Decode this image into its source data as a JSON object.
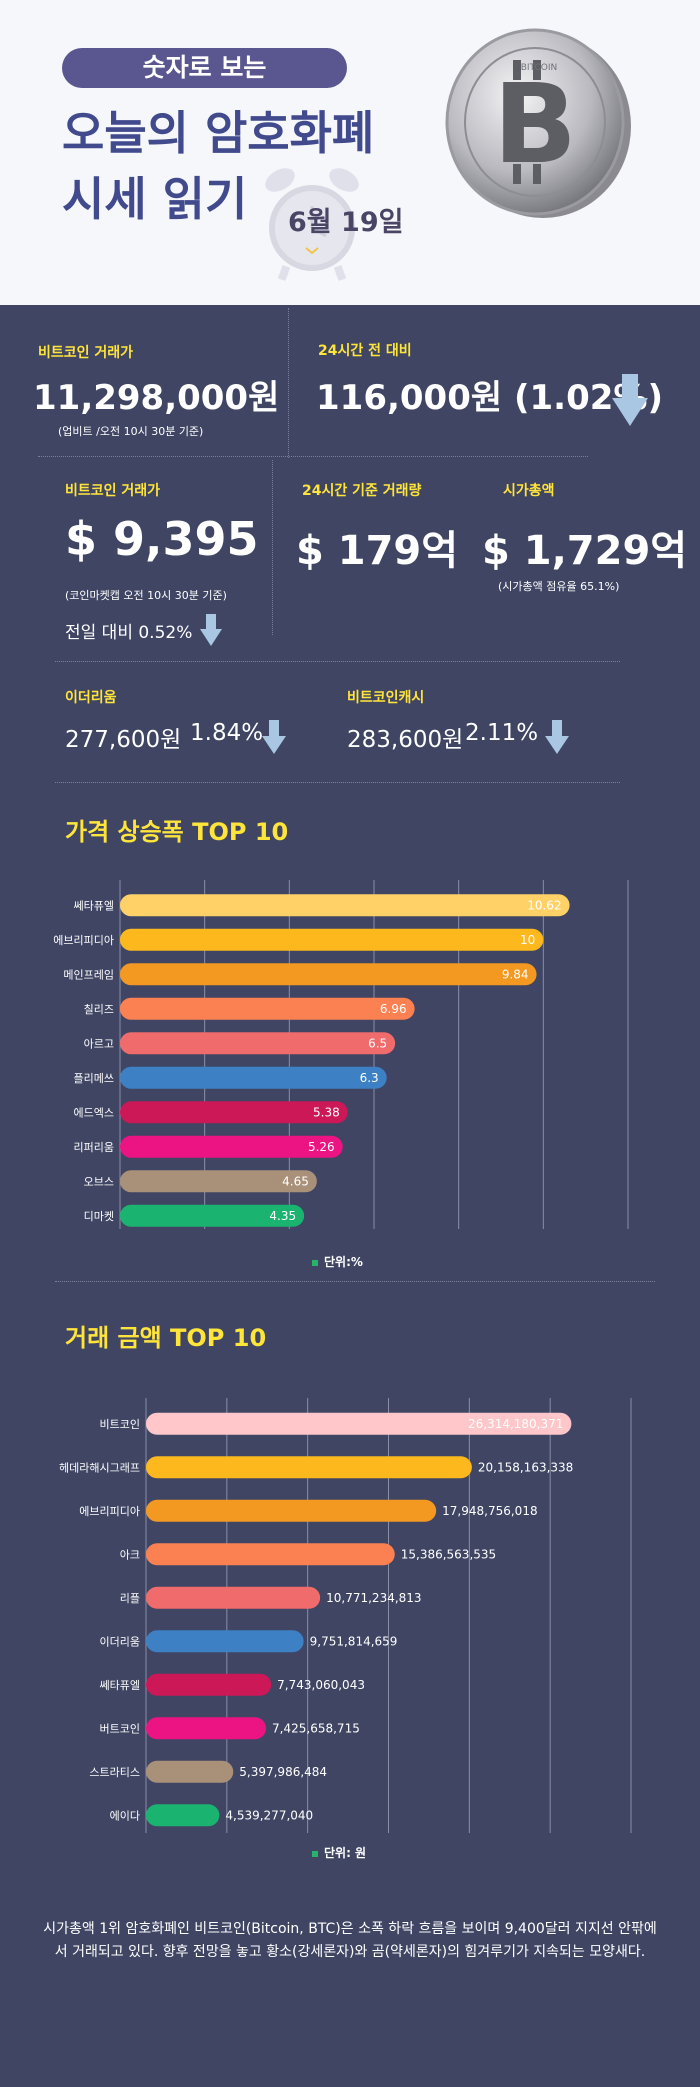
{
  "header": {
    "pill": "숫자로 보는",
    "title_line1": "오늘의 암호화폐",
    "title_line2": "시세 읽기",
    "date": "6월 19일",
    "coin_text": "BITCOIN"
  },
  "upbit": {
    "label": "비트코인 거래가",
    "price": "11,298,000원",
    "note": "(업비트 /오전 10시 30분 기준)"
  },
  "change24": {
    "label": "24시간 전 대비",
    "value": "116,000원 (1.02%)"
  },
  "coinmarketcap": {
    "label": "비트코인 거래가",
    "price": "$ 9,395",
    "note": "(코인마켓캡 오전 10시 30분 기준)",
    "prev": "전일 대비 0.52%"
  },
  "volume": {
    "label": "24시간 기준 거래량",
    "value": "$ 179억"
  },
  "marketcap": {
    "label": "시가총액",
    "value": "$ 1,729억",
    "note": "(시가총액 점유율 65.1%)"
  },
  "ethereum": {
    "label": "이더리움",
    "price": "277,600원",
    "pct": "1.84%"
  },
  "bch": {
    "label": "비트코인캐시",
    "price": "283,600원",
    "pct": "2.11%"
  },
  "colors": {
    "background": "#3f4563",
    "accent_yellow": "#ffe43a",
    "arrow": "#a9c6e2"
  },
  "chart_data": [
    {
      "type": "bar",
      "title": "가격 상승폭 TOP 10",
      "categories": [
        "쎄타퓨엘",
        "에브리피디아",
        "메인프레임",
        "칠리즈",
        "아르고",
        "플리메쓰",
        "에드엑스",
        "리퍼리움",
        "오브스",
        "디마켓"
      ],
      "values": [
        10.62,
        10,
        9.84,
        6.96,
        6.5,
        6.3,
        5.38,
        5.26,
        4.65,
        4.35
      ],
      "labels": [
        "10.62",
        "10",
        "9.84",
        "6.96",
        "6.5",
        "6.3",
        "5.38",
        "5.26",
        "4.65",
        "4.35"
      ],
      "colors": [
        "#ffd166",
        "#fcb81c",
        "#f39820",
        "#fc8152",
        "#f06b6b",
        "#3d80c4",
        "#cc1857",
        "#ec1483",
        "#a99179",
        "#1bb370"
      ],
      "xlim": [
        0,
        12
      ],
      "grid": true,
      "unit": "단위:%"
    },
    {
      "type": "bar",
      "title": "거래 금액 TOP 10",
      "categories": [
        "비트코인",
        "헤데라해시그래프",
        "에브리피디아",
        "아크",
        "리플",
        "이더리움",
        "쎄타퓨엘",
        "버트코인",
        "스트라티스",
        "에이다"
      ],
      "values": [
        26314180371,
        20158163338,
        17948756018,
        15386563535,
        10771234813,
        9751814659,
        7743060043,
        7425658715,
        5397986484,
        4539277040
      ],
      "labels": [
        "26,314,180,371",
        "20,158,163,338",
        "17,948,756,018",
        "15,386,563,535",
        "10,771,234,813",
        "9,751,814,659",
        "7,743,060,043",
        "7,425,658,715",
        "5,397,986,484",
        "4,539,277,040"
      ],
      "colors": [
        "#ffc7c9",
        "#fcb81c",
        "#f39820",
        "#fc8152",
        "#f06b6b",
        "#3d80c4",
        "#cc1857",
        "#ec1483",
        "#a99179",
        "#1bb370"
      ],
      "xlim": [
        0,
        30000000000
      ],
      "grid": true,
      "unit": "단위: 원"
    }
  ],
  "paragraph": "시가총액 1위 암호화폐인 비트코인(Bitcoin, BTC)은 소폭 하락 흐름을 보이며 9,400달러 지지선 안팎에서 거래되고 있다. 향후 전망을 놓고 황소(강세론자)와 곰(약세론자)의 힘겨루기가 지속되는 모양새다."
}
